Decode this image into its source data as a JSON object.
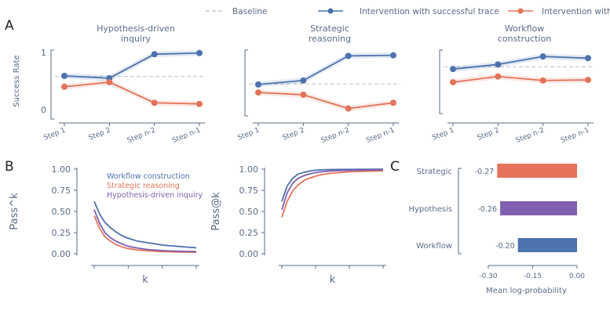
{
  "colors": {
    "blue": "#4c72b0",
    "orange": "#e5735a",
    "purple": "#7e5fb0",
    "baseline": "#c8ccd2",
    "axis": "#5a6b85"
  },
  "legend": {
    "baseline": "Baseline",
    "success": "Intervention with successful trace",
    "failed": "Intervention with failed trace"
  },
  "panels": {
    "A": "A",
    "B": "B",
    "C": "C"
  },
  "chart_data": [
    {
      "type": "line",
      "panel": "A",
      "title": "Hypothesis-driven inquiry",
      "categories": [
        "Step 1",
        "Step 2",
        "Step n-2",
        "Step n-1"
      ],
      "ylabel": "Success Rate",
      "ylim": [
        0,
        1
      ],
      "yticks": [
        "0",
        "1"
      ],
      "baseline": 0.58,
      "series": [
        {
          "name": "Intervention with successful trace",
          "values": [
            0.59,
            0.55,
            0.97,
            0.99
          ]
        },
        {
          "name": "Intervention with failed trace",
          "values": [
            0.4,
            0.48,
            0.12,
            0.1
          ]
        }
      ]
    },
    {
      "type": "line",
      "panel": "A",
      "title": "Strategic reasoning",
      "categories": [
        "Step 1",
        "Step 2",
        "Step n-2",
        "Step n-1"
      ],
      "ylim": [
        0,
        1
      ],
      "baseline": 0.45,
      "series": [
        {
          "name": "Intervention with successful trace",
          "values": [
            0.44,
            0.51,
            0.94,
            0.95
          ]
        },
        {
          "name": "Intervention with failed trace",
          "values": [
            0.3,
            0.26,
            0.02,
            0.12
          ]
        }
      ]
    },
    {
      "type": "line",
      "panel": "A",
      "title": "Workflow construction",
      "categories": [
        "Step 1",
        "Step 2",
        "Step n-2",
        "Step n-1"
      ],
      "ylim": [
        0,
        1
      ],
      "baseline": 0.75,
      "series": [
        {
          "name": "Intervention with successful trace",
          "values": [
            0.71,
            0.79,
            0.93,
            0.9
          ]
        },
        {
          "name": "Intervention with failed trace",
          "values": [
            0.48,
            0.58,
            0.51,
            0.52
          ]
        }
      ]
    },
    {
      "type": "line",
      "panel": "B",
      "xlabel": "k",
      "ylabel": "Pass^k",
      "ylim": [
        0,
        1
      ],
      "yticks": [
        "0.00",
        "0.25",
        "0.50",
        "0.75",
        "1.00"
      ],
      "x": [
        1,
        2,
        3,
        4,
        5,
        6,
        7,
        8,
        9,
        10,
        11,
        12,
        13,
        14,
        15,
        16,
        17,
        18,
        19,
        20
      ],
      "series": [
        {
          "name": "Workflow construction",
          "values": [
            0.62,
            0.47,
            0.37,
            0.31,
            0.26,
            0.22,
            0.19,
            0.17,
            0.15,
            0.14,
            0.13,
            0.12,
            0.11,
            0.1,
            0.095,
            0.09,
            0.085,
            0.08,
            0.075,
            0.07
          ]
        },
        {
          "name": "Strategic reasoning",
          "values": [
            0.45,
            0.3,
            0.2,
            0.15,
            0.11,
            0.085,
            0.065,
            0.055,
            0.045,
            0.04,
            0.035,
            0.03,
            0.027,
            0.025,
            0.023,
            0.021,
            0.02,
            0.019,
            0.018,
            0.017
          ]
        },
        {
          "name": "Hypothesis-driven inquiry",
          "values": [
            0.52,
            0.36,
            0.25,
            0.19,
            0.15,
            0.12,
            0.095,
            0.08,
            0.068,
            0.058,
            0.05,
            0.045,
            0.04,
            0.036,
            0.033,
            0.031,
            0.029,
            0.027,
            0.026,
            0.025
          ]
        }
      ]
    },
    {
      "type": "line",
      "panel": "B",
      "xlabel": "k",
      "ylabel": "Pass@k",
      "ylim": [
        0,
        1
      ],
      "yticks": [
        "0.00",
        "0.25",
        "0.50",
        "0.75",
        "1.00"
      ],
      "x": [
        1,
        2,
        3,
        4,
        5,
        6,
        7,
        8,
        9,
        10,
        11,
        12,
        13,
        14,
        15,
        16,
        17,
        18,
        19,
        20
      ],
      "series": [
        {
          "name": "Workflow construction",
          "values": [
            0.62,
            0.8,
            0.89,
            0.94,
            0.96,
            0.975,
            0.985,
            0.99,
            0.993,
            0.995,
            0.996,
            0.997,
            0.998,
            0.998,
            0.999,
            0.999,
            0.999,
            0.999,
            1.0,
            1.0
          ]
        },
        {
          "name": "Strategic reasoning",
          "values": [
            0.43,
            0.62,
            0.74,
            0.81,
            0.86,
            0.89,
            0.91,
            0.93,
            0.94,
            0.95,
            0.955,
            0.96,
            0.965,
            0.97,
            0.972,
            0.974,
            0.976,
            0.977,
            0.978,
            0.979
          ]
        },
        {
          "name": "Hypothesis-driven inquiry",
          "values": [
            0.52,
            0.72,
            0.83,
            0.89,
            0.92,
            0.94,
            0.955,
            0.965,
            0.972,
            0.977,
            0.98,
            0.983,
            0.985,
            0.987,
            0.988,
            0.989,
            0.99,
            0.991,
            0.992,
            0.992
          ]
        }
      ]
    },
    {
      "type": "bar",
      "panel": "C",
      "orientation": "horizontal",
      "xlabel": "Mean log-probability",
      "xlim": [
        -0.3,
        0.0
      ],
      "xticks": [
        "-0.30",
        "-0.15",
        "0.00"
      ],
      "categories": [
        "Strategic",
        "Hypothesis",
        "Workflow"
      ],
      "values": [
        -0.27,
        -0.26,
        -0.2
      ],
      "labels": [
        "-0.27",
        "-0.26",
        "-0.20"
      ],
      "bar_colors": [
        "#e5735a",
        "#7e5fb0",
        "#4c72b0"
      ]
    }
  ]
}
